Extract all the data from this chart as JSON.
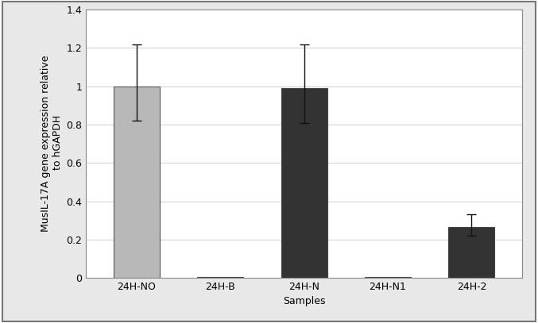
{
  "categories": [
    "24H-NO",
    "24H-B",
    "24H-N",
    "24H-N1",
    "24H-2"
  ],
  "values": [
    1.0,
    0.003,
    0.99,
    0.003,
    0.265
  ],
  "errors_upper": [
    0.22,
    0.0,
    0.23,
    0.0,
    0.065
  ],
  "errors_lower": [
    0.18,
    0.0,
    0.18,
    0.0,
    0.045
  ],
  "bar_colors": [
    "#b8b8b8",
    "#333333",
    "#333333",
    "#333333",
    "#333333"
  ],
  "bar_edgecolors": [
    "#555555",
    "#444444",
    "#444444",
    "#444444",
    "#444444"
  ],
  "ylabel": "MusIL-17A gene expression relative\n to hGAPDH",
  "xlabel": "Samples",
  "ylim": [
    0,
    1.4
  ],
  "yticks": [
    0,
    0.2,
    0.4,
    0.6,
    0.8,
    1.0,
    1.2,
    1.4
  ],
  "ytick_labels": [
    "0",
    "0.2",
    "0.4",
    "0.6",
    "0.8",
    "1",
    "1.2",
    "1.4"
  ],
  "bar_width": 0.55,
  "figure_bg": "#e8e8e8",
  "axes_bg": "#ffffff",
  "grid_color": "#d0d0d0",
  "ecolor": "#111111",
  "capsize": 4,
  "label_fontsize": 9,
  "tick_fontsize": 9,
  "border_color": "#888888"
}
